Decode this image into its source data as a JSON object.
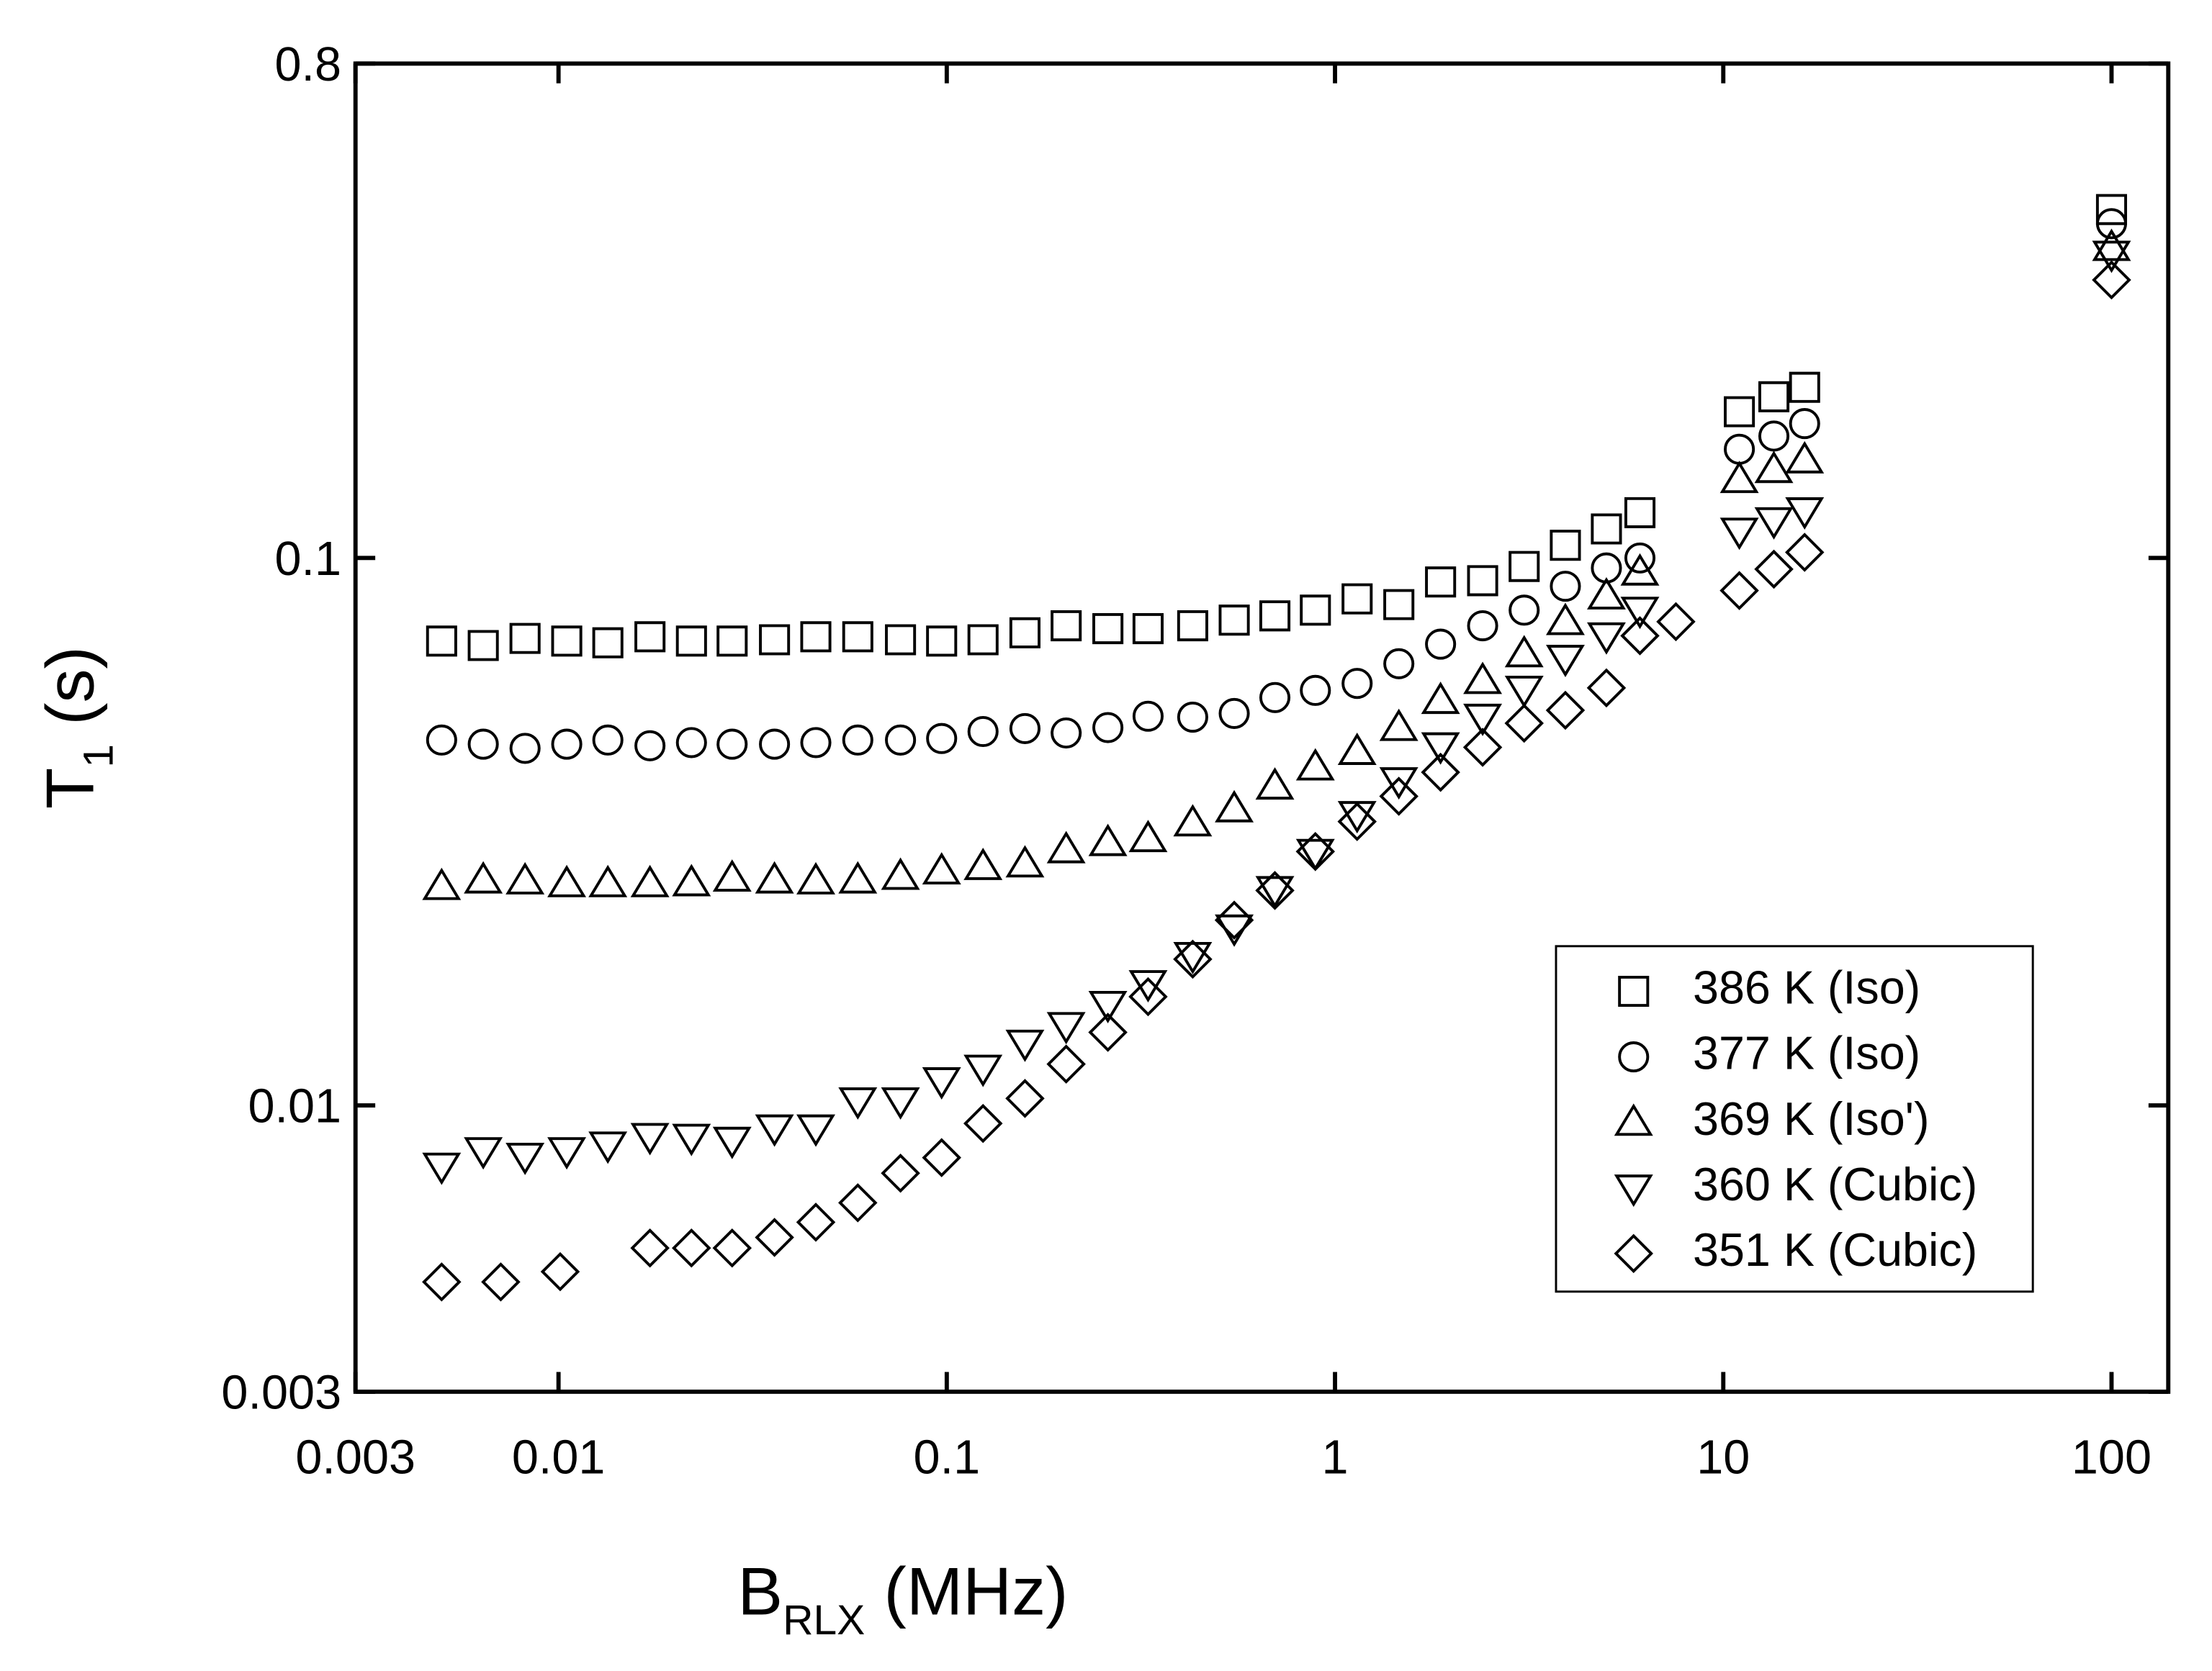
{
  "chart_data": {
    "type": "scatter",
    "xlabel": [
      "B",
      "RLX",
      " (MHz)"
    ],
    "ylabel": [
      "T",
      "1",
      " (s)"
    ],
    "xscale": "log",
    "yscale": "log",
    "xlim": [
      0.003,
      140
    ],
    "ylim": [
      0.003,
      0.8
    ],
    "xticks": [
      0.003,
      0.01,
      0.1,
      1,
      10,
      100
    ],
    "yticks": [
      0.003,
      0.01,
      0.1,
      0.8
    ],
    "legend": "lower right",
    "series": [
      {
        "name": "386 K (Iso)",
        "color": "#000000",
        "marker": "square",
        "x": [
          0.005,
          0.0064,
          0.0082,
          0.0105,
          0.0134,
          0.0172,
          0.022,
          0.028,
          0.036,
          0.046,
          0.059,
          0.076,
          0.097,
          0.124,
          0.159,
          0.203,
          0.26,
          0.33,
          0.43,
          0.55,
          0.7,
          0.89,
          1.14,
          1.46,
          1.87,
          2.4,
          3.07,
          3.92,
          5.0,
          6.1,
          11,
          13.5,
          16.2,
          100
        ],
        "values": [
          0.0705,
          0.0692,
          0.0713,
          0.0705,
          0.07,
          0.0718,
          0.0705,
          0.0705,
          0.0709,
          0.0718,
          0.0718,
          0.0709,
          0.0705,
          0.0709,
          0.073,
          0.0752,
          0.0743,
          0.0743,
          0.0752,
          0.077,
          0.0784,
          0.0803,
          0.0842,
          0.0822,
          0.0904,
          0.0909,
          0.0965,
          0.1055,
          0.113,
          0.121,
          0.185,
          0.197,
          0.205,
          0.433
        ]
      },
      {
        "name": "377 K (Iso)",
        "color": "#000000",
        "marker": "circle",
        "x": [
          0.005,
          0.0064,
          0.0082,
          0.0105,
          0.0134,
          0.0172,
          0.022,
          0.028,
          0.036,
          0.046,
          0.059,
          0.076,
          0.097,
          0.124,
          0.159,
          0.203,
          0.26,
          0.33,
          0.43,
          0.55,
          0.7,
          0.89,
          1.14,
          1.46,
          1.87,
          2.4,
          3.07,
          3.92,
          5.0,
          6.1,
          11,
          13.5,
          16.2,
          100
        ],
        "values": [
          0.0465,
          0.0457,
          0.0449,
          0.0457,
          0.0465,
          0.0454,
          0.046,
          0.0457,
          0.0457,
          0.046,
          0.0465,
          0.0465,
          0.0468,
          0.0482,
          0.0488,
          0.0479,
          0.049,
          0.0514,
          0.0512,
          0.052,
          0.0556,
          0.0573,
          0.059,
          0.0641,
          0.0696,
          0.0752,
          0.0803,
          0.0888,
          0.0959,
          0.1,
          0.158,
          0.167,
          0.176,
          0.408
        ]
      },
      {
        "name": "369 K (Iso')",
        "color": "#000000",
        "marker": "triangle-up",
        "x": [
          0.005,
          0.0064,
          0.0082,
          0.0105,
          0.0134,
          0.0172,
          0.022,
          0.028,
          0.036,
          0.046,
          0.059,
          0.076,
          0.097,
          0.124,
          0.159,
          0.203,
          0.26,
          0.33,
          0.43,
          0.55,
          0.7,
          0.89,
          1.14,
          1.46,
          1.87,
          2.4,
          3.07,
          3.92,
          5.0,
          6.1,
          11,
          13.5,
          16.2,
          100
        ],
        "values": [
          0.0251,
          0.0258,
          0.0257,
          0.0254,
          0.0254,
          0.0254,
          0.0255,
          0.026,
          0.0258,
          0.0257,
          0.0258,
          0.0262,
          0.0268,
          0.0273,
          0.0276,
          0.0293,
          0.0302,
          0.0307,
          0.0328,
          0.0348,
          0.0383,
          0.0415,
          0.0443,
          0.049,
          0.0549,
          0.0597,
          0.0668,
          0.0765,
          0.0852,
          0.0942,
          0.139,
          0.145,
          0.151,
          0.369
        ]
      },
      {
        "name": "360 K (Cubic)",
        "color": "#000000",
        "marker": "triangle-down",
        "x": [
          0.005,
          0.0064,
          0.0082,
          0.0105,
          0.0134,
          0.0172,
          0.022,
          0.028,
          0.036,
          0.046,
          0.059,
          0.076,
          0.097,
          0.124,
          0.159,
          0.203,
          0.26,
          0.33,
          0.43,
          0.55,
          0.7,
          0.89,
          1.14,
          1.46,
          1.87,
          2.4,
          3.07,
          3.92,
          5.0,
          6.1,
          11,
          13.5,
          16.2,
          100
        ],
        "values": [
          0.00775,
          0.00827,
          0.00808,
          0.00827,
          0.00847,
          0.00878,
          0.00875,
          0.00864,
          0.0091,
          0.0091,
          0.0102,
          0.0102,
          0.0111,
          0.0117,
          0.013,
          0.014,
          0.0153,
          0.0167,
          0.0188,
          0.0211,
          0.0248,
          0.029,
          0.034,
          0.0392,
          0.0454,
          0.0512,
          0.0576,
          0.0656,
          0.0721,
          0.0803,
          0.112,
          0.117,
          0.122,
          0.359
        ]
      },
      {
        "name": "351 K (Cubic)",
        "color": "#000000",
        "marker": "diamond",
        "x": [
          0.005,
          0.0071,
          0.0101,
          0.0172,
          0.022,
          0.028,
          0.036,
          0.046,
          0.059,
          0.076,
          0.097,
          0.124,
          0.159,
          0.203,
          0.26,
          0.33,
          0.43,
          0.55,
          0.7,
          0.89,
          1.14,
          1.46,
          1.87,
          2.4,
          3.07,
          3.92,
          5.0,
          6.1,
          7.55,
          11,
          13.5,
          16.2,
          100
        ],
        "values": [
          0.00476,
          0.00476,
          0.00497,
          0.00549,
          0.00549,
          0.00549,
          0.00574,
          0.00612,
          0.00664,
          0.00752,
          0.00803,
          0.00927,
          0.0103,
          0.0119,
          0.0136,
          0.0158,
          0.0185,
          0.0218,
          0.0247,
          0.0291,
          0.033,
          0.0367,
          0.0406,
          0.0451,
          0.0499,
          0.0527,
          0.0579,
          0.0721,
          0.0765,
          0.0872,
          0.0954,
          0.1024,
          0.322
        ]
      }
    ]
  }
}
